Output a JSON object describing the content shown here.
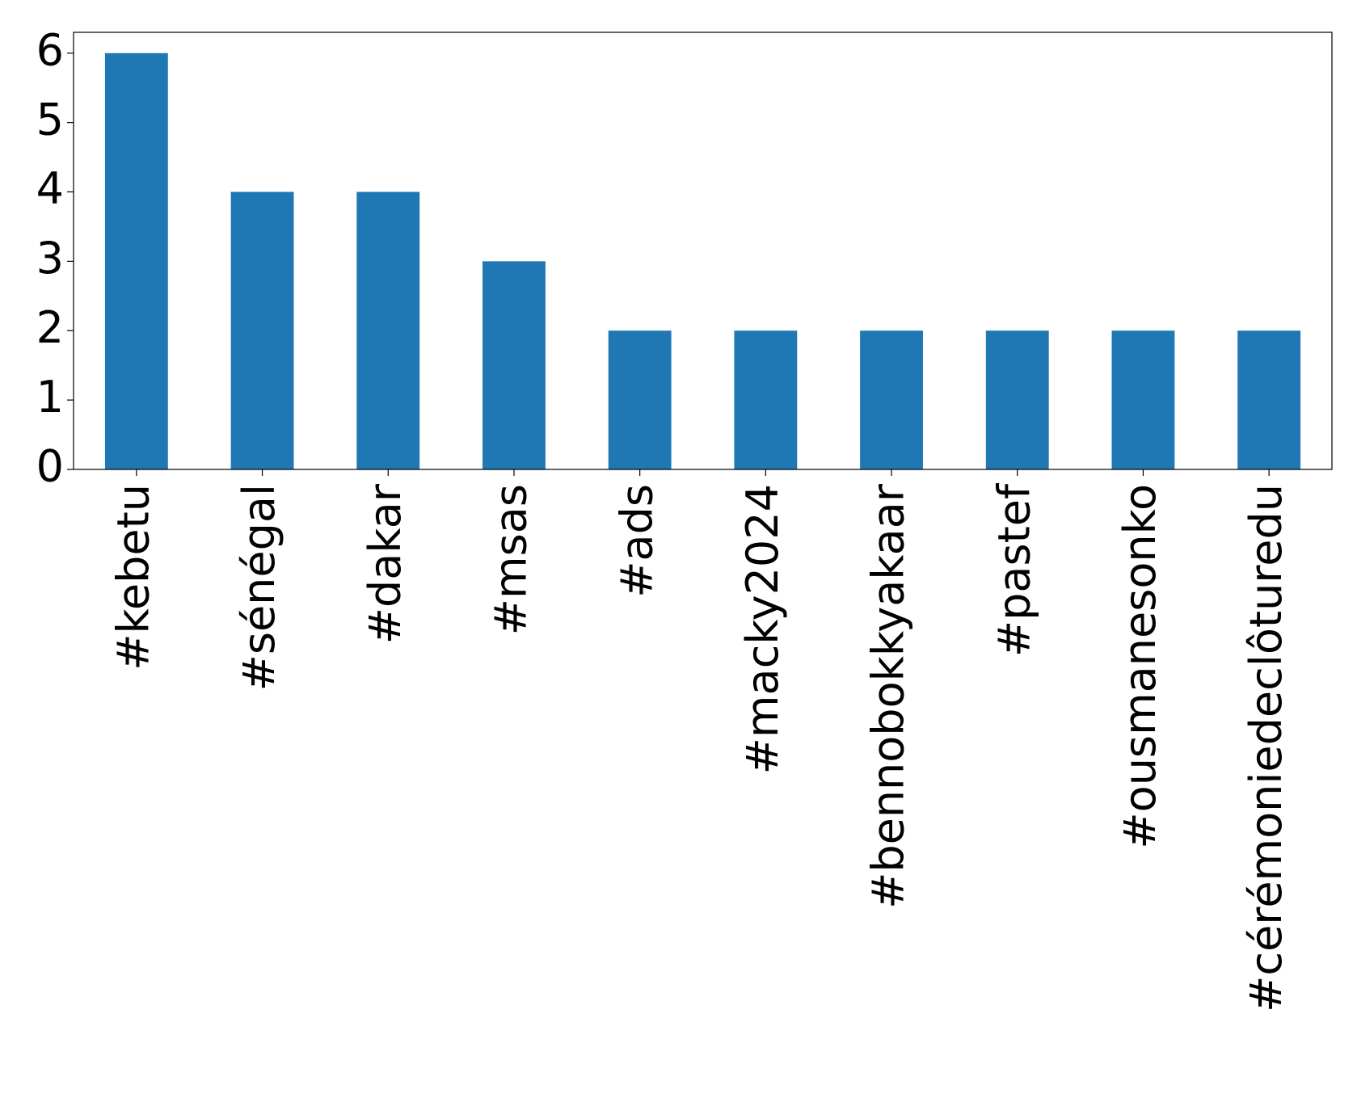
{
  "chart_data": {
    "type": "bar",
    "categories": [
      "#kebetu",
      "#sénégal",
      "#dakar",
      "#msas",
      "#ads",
      "#macky2024",
      "#bennobokkyakaar",
      "#pastef",
      "#ousmanesonko",
      "#cérémoniedeclôturedu"
    ],
    "values": [
      6,
      4,
      4,
      3,
      2,
      2,
      2,
      2,
      2,
      2
    ],
    "color": "#1f77b4",
    "ylim": [
      0,
      6.3
    ],
    "yticks": [
      0,
      1,
      2,
      3,
      4,
      5,
      6
    ],
    "grid": false
  }
}
